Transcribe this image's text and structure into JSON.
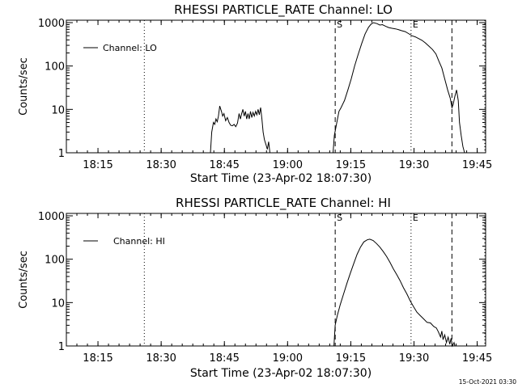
{
  "footer_timestamp": "15-Oct-2021 03:30",
  "chart_data": [
    {
      "type": "line",
      "title": "RHESSI PARTICLE_RATE Channel: LO",
      "xlabel": "Start Time (23-Apr-02 18:07:30)",
      "ylabel": "Counts/sec",
      "y_scale": "log",
      "xlim_minutes_after_start": [
        0,
        99.5
      ],
      "ylim": [
        1,
        1000
      ],
      "x_ticks": [
        {
          "label": "18:15",
          "minutes": 7.5
        },
        {
          "label": "18:30",
          "minutes": 22.5
        },
        {
          "label": "18:45",
          "minutes": 37.5
        },
        {
          "label": "19:00",
          "minutes": 52.5
        },
        {
          "label": "19:15",
          "minutes": 67.5
        },
        {
          "label": "19:30",
          "minutes": 82.5
        },
        {
          "label": "19:45",
          "minutes": 97.5
        }
      ],
      "y_ticks": [
        {
          "label": "1",
          "value": 1
        },
        {
          "label": "10",
          "value": 10
        },
        {
          "label": "100",
          "value": 100
        },
        {
          "label": "1000",
          "value": 1000
        }
      ],
      "legend": {
        "position": "top-left",
        "entries": [
          "Channel: LO"
        ]
      },
      "markers": [
        {
          "label": "S",
          "style": "dashed",
          "minutes": 63.8
        },
        {
          "label": "E",
          "style": "dotted",
          "minutes": 81.8
        },
        {
          "label": "",
          "style": "dashed",
          "minutes": 91.5
        },
        {
          "label": "",
          "style": "dotted",
          "minutes": 18.5
        },
        {
          "label": "",
          "style": "dotted",
          "minutes": 99.8
        }
      ],
      "series": [
        {
          "segments": [
            [
              [
                34.2,
                1
              ],
              [
                34.5,
                3
              ],
              [
                34.9,
                5
              ],
              [
                35.2,
                4.5
              ],
              [
                35.5,
                6
              ],
              [
                35.8,
                5.2
              ],
              [
                36.1,
                7
              ],
              [
                36.4,
                12
              ],
              [
                36.8,
                9
              ],
              [
                37.1,
                7
              ],
              [
                37.4,
                8
              ],
              [
                37.8,
                5.5
              ],
              [
                38.2,
                6.5
              ],
              [
                38.6,
                5
              ],
              [
                39.0,
                4.3
              ],
              [
                39.4,
                4.2
              ],
              [
                39.8,
                4.5
              ],
              [
                40.2,
                4
              ],
              [
                40.6,
                4.8
              ],
              [
                41.0,
                8
              ],
              [
                41.3,
                6
              ],
              [
                41.6,
                8
              ],
              [
                41.9,
                10
              ],
              [
                42.2,
                7
              ],
              [
                42.5,
                9
              ],
              [
                42.8,
                6
              ],
              [
                43.1,
                8
              ],
              [
                43.4,
                6
              ],
              [
                43.7,
                9
              ],
              [
                44.0,
                6.5
              ],
              [
                44.3,
                8.5
              ],
              [
                44.6,
                7
              ],
              [
                44.9,
                9
              ],
              [
                45.2,
                7.5
              ],
              [
                45.5,
                10
              ],
              [
                45.8,
                7.5
              ],
              [
                46.1,
                11
              ],
              [
                46.4,
                6
              ],
              [
                46.7,
                3
              ],
              [
                47.0,
                2
              ],
              [
                47.4,
                1.5
              ],
              [
                47.7,
                1.2
              ],
              [
                48.0,
                1.8
              ],
              [
                48.3,
                1
              ]
            ],
            [
              [
                63.3,
                1
              ],
              [
                63.6,
                2.5
              ],
              [
                64.1,
                4.5
              ],
              [
                64.7,
                9
              ],
              [
                65.2,
                11
              ],
              [
                66.0,
                16
              ],
              [
                66.8,
                28
              ],
              [
                67.6,
                50
              ],
              [
                68.4,
                100
              ],
              [
                69.2,
                180
              ],
              [
                70.1,
                330
              ],
              [
                70.9,
                550
              ],
              [
                71.7,
                780
              ],
              [
                72.3,
                920
              ],
              [
                72.9,
                1000
              ],
              [
                73.7,
                950
              ],
              [
                74.4,
                880
              ],
              [
                75.0,
                900
              ],
              [
                75.8,
                820
              ],
              [
                76.5,
                770
              ],
              [
                77.3,
                740
              ],
              [
                78.1,
                720
              ],
              [
                78.8,
                690
              ],
              [
                79.6,
                650
              ],
              [
                80.4,
                620
              ],
              [
                81.2,
                560
              ],
              [
                82.0,
                500
              ],
              [
                82.8,
                470
              ],
              [
                83.6,
                430
              ],
              [
                84.4,
                390
              ],
              [
                85.2,
                340
              ],
              [
                86.0,
                290
              ],
              [
                86.9,
                240
              ],
              [
                87.7,
                190
              ],
              [
                88.4,
                130
              ],
              [
                89.1,
                90
              ],
              [
                89.8,
                50
              ],
              [
                90.5,
                28
              ],
              [
                91.1,
                18
              ],
              [
                91.5,
                11
              ],
              [
                91.8,
                13
              ],
              [
                92.2,
                20
              ],
              [
                92.6,
                28
              ],
              [
                93.0,
                16
              ],
              [
                93.3,
                5
              ],
              [
                93.7,
                2.5
              ],
              [
                94.1,
                1.4
              ],
              [
                94.5,
                1
              ]
            ]
          ]
        }
      ]
    },
    {
      "type": "line",
      "title": "RHESSI PARTICLE_RATE Channel: HI",
      "xlabel": "Start Time (23-Apr-02 18:07:30)",
      "ylabel": "Counts/sec",
      "y_scale": "log",
      "xlim_minutes_after_start": [
        0,
        99.5
      ],
      "ylim": [
        1,
        1000
      ],
      "x_ticks": [
        {
          "label": "18:15",
          "minutes": 7.5
        },
        {
          "label": "18:30",
          "minutes": 22.5
        },
        {
          "label": "18:45",
          "minutes": 37.5
        },
        {
          "label": "19:00",
          "minutes": 52.5
        },
        {
          "label": "19:15",
          "minutes": 67.5
        },
        {
          "label": "19:30",
          "minutes": 82.5
        },
        {
          "label": "19:45",
          "minutes": 97.5
        }
      ],
      "y_ticks": [
        {
          "label": "1",
          "value": 1
        },
        {
          "label": "10",
          "value": 10
        },
        {
          "label": "100",
          "value": 100
        },
        {
          "label": "1000",
          "value": 1000
        }
      ],
      "legend": {
        "position": "top-left",
        "entries": [
          "Channel: HI"
        ]
      },
      "markers": [
        {
          "label": "S",
          "style": "dashed",
          "minutes": 63.8
        },
        {
          "label": "E",
          "style": "dotted",
          "minutes": 81.8
        },
        {
          "label": "",
          "style": "dashed",
          "minutes": 91.5
        },
        {
          "label": "",
          "style": "dotted",
          "minutes": 18.5
        },
        {
          "label": "",
          "style": "dotted",
          "minutes": 99.8
        }
      ],
      "series": [
        {
          "segments": [
            [
              [
                63.5,
                1
              ],
              [
                63.8,
                3
              ],
              [
                64.3,
                5
              ],
              [
                65.0,
                9
              ],
              [
                65.8,
                16
              ],
              [
                66.6,
                28
              ],
              [
                67.4,
                48
              ],
              [
                68.2,
                80
              ],
              [
                69.0,
                130
              ],
              [
                69.8,
                190
              ],
              [
                70.6,
                250
              ],
              [
                71.4,
                280
              ],
              [
                72.0,
                290
              ],
              [
                72.8,
                270
              ],
              [
                73.6,
                230
              ],
              [
                74.4,
                190
              ],
              [
                75.2,
                150
              ],
              [
                76.0,
                115
              ],
              [
                76.8,
                85
              ],
              [
                77.6,
                60
              ],
              [
                78.4,
                44
              ],
              [
                79.2,
                32
              ],
              [
                80.0,
                22
              ],
              [
                80.8,
                16
              ],
              [
                81.6,
                11
              ],
              [
                82.4,
                8
              ],
              [
                83.2,
                6
              ],
              [
                84.0,
                5
              ],
              [
                84.8,
                4.2
              ],
              [
                85.6,
                3.5
              ],
              [
                86.4,
                3.4
              ],
              [
                87.2,
                2.8
              ],
              [
                87.8,
                2.6
              ],
              [
                88.3,
                2.1
              ],
              [
                88.8,
                1.6
              ],
              [
                89.1,
                2.2
              ],
              [
                89.4,
                1.4
              ],
              [
                89.8,
                1.8
              ],
              [
                90.2,
                1.2
              ],
              [
                90.6,
                1.6
              ],
              [
                91.0,
                1.1
              ],
              [
                91.3,
                1.5
              ],
              [
                91.6,
                1
              ],
              [
                92.0,
                1.2
              ],
              [
                92.2,
                1
              ]
            ]
          ]
        }
      ]
    }
  ]
}
